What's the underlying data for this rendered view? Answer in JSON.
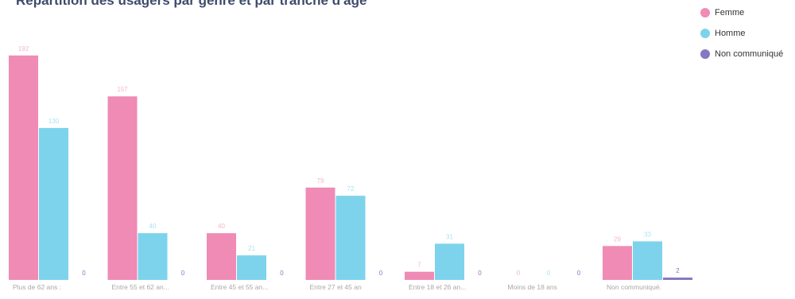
{
  "colors": {
    "femme": "#ef8bb5",
    "homme": "#7dd3ec",
    "non_communique": "#8577c2",
    "title": "#3d4a6b",
    "tick_label": "#a8a8a8"
  },
  "chart_data": {
    "type": "bar",
    "title": "Répartition des usagers par genre et par tranche d'âge",
    "xlabel": "",
    "ylabel": "",
    "ylim": [
      0,
      200
    ],
    "grid": false,
    "legend_position": "top-right",
    "categories": [
      "Plus de 62 ans :",
      "Entre 55 et 62 an...",
      "Entre 45 et 55 an...",
      "Entre 27 et 45 an",
      "Entre 18 et 26 an...",
      "Moins de 18 ans",
      "Non communiqué."
    ],
    "series": [
      {
        "name": "Femme",
        "values": [
          192,
          157,
          40,
          79,
          7,
          0,
          29
        ]
      },
      {
        "name": "Homme",
        "values": [
          130,
          40,
          21,
          72,
          31,
          0,
          33
        ]
      },
      {
        "name": "Non communiqué",
        "values": [
          0,
          0,
          0,
          0,
          0,
          0,
          2
        ]
      }
    ]
  }
}
